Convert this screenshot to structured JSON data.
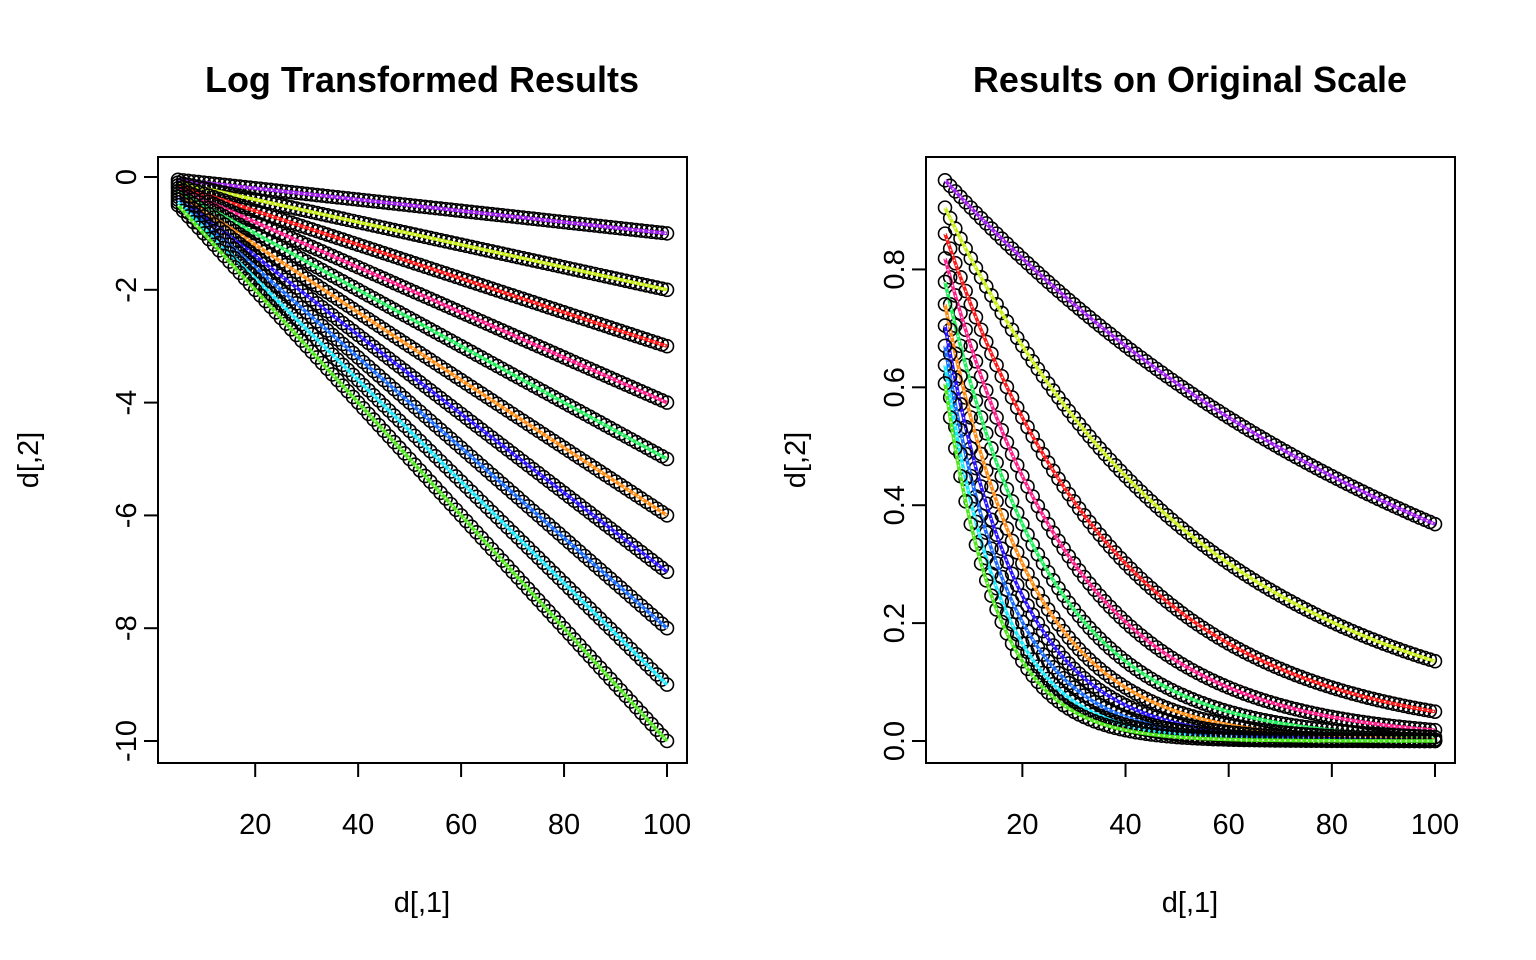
{
  "chart_data": [
    {
      "type": "scatter",
      "title": "Log Transformed Results",
      "xlabel": "d[,1]",
      "ylabel": "d[,2]",
      "xlim": [
        5,
        100
      ],
      "ylim": [
        -10,
        0
      ],
      "x_ticks": [
        "20",
        "40",
        "60",
        "80",
        "100"
      ],
      "y_ticks": [
        "0",
        "-2",
        "-4",
        "-6",
        "-8",
        "-10"
      ],
      "grid": false,
      "legend": "none",
      "x_range": [
        5,
        100
      ],
      "series": [
        {
          "color": "#a020f0",
          "rate": 0.01,
          "y_at_x5": -0.05,
          "y_at_x100": -1
        },
        {
          "color": "#c8f018",
          "rate": 0.02,
          "y_at_x5": -0.1,
          "y_at_x100": -2
        },
        {
          "color": "#ff1a1a",
          "rate": 0.03,
          "y_at_x5": -0.15,
          "y_at_x100": -3
        },
        {
          "color": "#ff1f8a",
          "rate": 0.04,
          "y_at_x5": -0.2,
          "y_at_x100": -4
        },
        {
          "color": "#22f05a",
          "rate": 0.05,
          "y_at_x5": -0.25,
          "y_at_x100": -5
        },
        {
          "color": "#ff8c14",
          "rate": 0.06,
          "y_at_x5": -0.3,
          "y_at_x100": -6
        },
        {
          "color": "#2a14ff",
          "rate": 0.07,
          "y_at_x5": -0.35,
          "y_at_x100": -7
        },
        {
          "color": "#1a6cff",
          "rate": 0.08,
          "y_at_x5": -0.4,
          "y_at_x100": -8
        },
        {
          "color": "#1ae8ff",
          "rate": 0.09,
          "y_at_x5": -0.45,
          "y_at_x100": -9
        },
        {
          "color": "#4ce81a",
          "rate": 0.1,
          "y_at_x5": -0.5,
          "y_at_x100": -10
        }
      ]
    },
    {
      "type": "scatter",
      "title": "Results on Original Scale",
      "xlabel": "d[,1]",
      "ylabel": "d[,2]",
      "xlim": [
        5,
        100
      ],
      "ylim": [
        0,
        0.95
      ],
      "x_ticks": [
        "20",
        "40",
        "60",
        "80",
        "100"
      ],
      "y_ticks": [
        "0.0",
        "0.2",
        "0.4",
        "0.6",
        "0.8"
      ],
      "grid": false,
      "legend": "none",
      "x_range": [
        5,
        100
      ],
      "series": [
        {
          "color": "#a020f0",
          "rate": 0.01,
          "y_at_x5": 0.951,
          "y_at_x100": 0.368
        },
        {
          "color": "#c8f018",
          "rate": 0.02,
          "y_at_x5": 0.905,
          "y_at_x100": 0.135
        },
        {
          "color": "#ff1a1a",
          "rate": 0.03,
          "y_at_x5": 0.861,
          "y_at_x100": 0.05
        },
        {
          "color": "#ff1f8a",
          "rate": 0.04,
          "y_at_x5": 0.819,
          "y_at_x100": 0.018
        },
        {
          "color": "#22f05a",
          "rate": 0.05,
          "y_at_x5": 0.779,
          "y_at_x100": 0.007
        },
        {
          "color": "#ff8c14",
          "rate": 0.06,
          "y_at_x5": 0.741,
          "y_at_x100": 0.002
        },
        {
          "color": "#2a14ff",
          "rate": 0.07,
          "y_at_x5": 0.705,
          "y_at_x100": 0.001
        },
        {
          "color": "#1a6cff",
          "rate": 0.08,
          "y_at_x5": 0.67,
          "y_at_x100": 0.0
        },
        {
          "color": "#1ae8ff",
          "rate": 0.09,
          "y_at_x5": 0.638,
          "y_at_x100": 0.0
        },
        {
          "color": "#4ce81a",
          "rate": 0.1,
          "y_at_x5": 0.607,
          "y_at_x100": 0.0
        }
      ]
    }
  ]
}
